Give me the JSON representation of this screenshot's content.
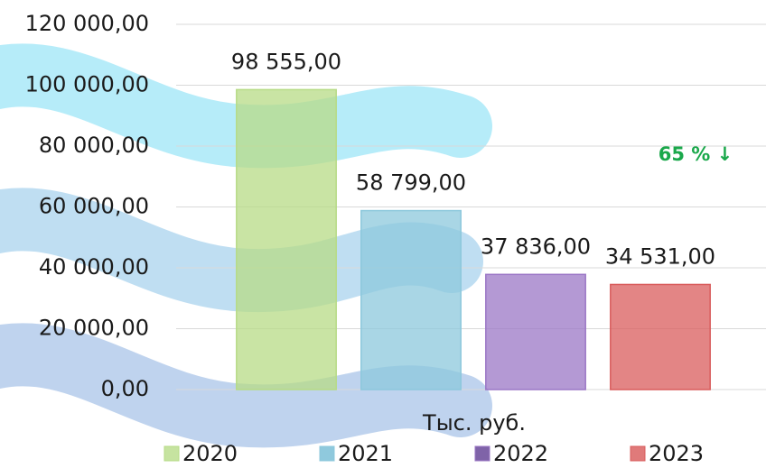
{
  "chart_data": {
    "type": "bar",
    "categories": [
      "2020",
      "2021",
      "2022",
      "2023"
    ],
    "values": [
      98555,
      58799,
      37836,
      34531
    ],
    "value_labels": [
      "98 555,00",
      "58 799,00",
      "37 836,00",
      "34 531,00"
    ],
    "colors": [
      "#b7db86",
      "#8cc8dc",
      "#9b77c6",
      "#d95c5c"
    ],
    "legend_colors": [
      "#c6e3a0",
      "#8fc9dd",
      "#7f63a8",
      "#e07a7a"
    ],
    "ylim": [
      0,
      120000
    ],
    "yticks": [
      {
        "value": 0,
        "label": "0,00"
      },
      {
        "value": 20000,
        "label": "20 000,00"
      },
      {
        "value": 40000,
        "label": "40 000,00"
      },
      {
        "value": 60000,
        "label": "60 000,00"
      },
      {
        "value": 80000,
        "label": "80 000,00"
      },
      {
        "value": 100000,
        "label": "100 000,00"
      },
      {
        "value": 120000,
        "label": "120 000,00"
      }
    ],
    "x_label": "Тыс. руб.",
    "annotation": "65 % ↓",
    "grid": true,
    "legend": "bottom"
  }
}
